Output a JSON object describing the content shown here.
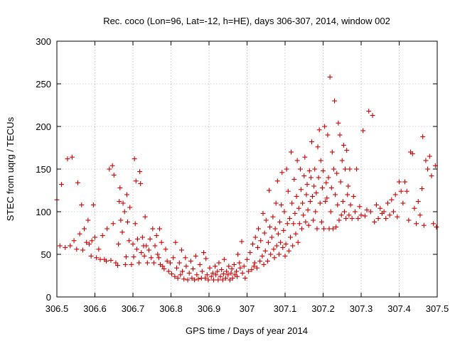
{
  "chart_data": {
    "type": "scatter",
    "title": "Rec. coco (Lon=96, Lat=-12, h=HE), days 306-307, 2014, window 002",
    "xlabel": "GPS time / Days of year 2014",
    "ylabel": "STEC from uqrg / TECUs",
    "xlim": [
      306.5,
      307.5
    ],
    "ylim": [
      0,
      300
    ],
    "grid": true,
    "marker": "plus",
    "point_color": "#d00000",
    "xticks": [
      {
        "value": 306.5,
        "label": "306.5"
      },
      {
        "value": 306.6,
        "label": "306.6"
      },
      {
        "value": 306.7,
        "label": "306.7"
      },
      {
        "value": 306.8,
        "label": "306.8"
      },
      {
        "value": 306.9,
        "label": "306.9"
      },
      {
        "value": 307.0,
        "label": "307"
      },
      {
        "value": 307.1,
        "label": "307.1"
      },
      {
        "value": 307.2,
        "label": "307.2"
      },
      {
        "value": 307.3,
        "label": "307.3"
      },
      {
        "value": 307.4,
        "label": "307.4"
      },
      {
        "value": 307.5,
        "label": "307.5"
      }
    ],
    "yticks": [
      {
        "value": 0,
        "label": "0"
      },
      {
        "value": 50,
        "label": "50"
      },
      {
        "value": 100,
        "label": "100"
      },
      {
        "value": 150,
        "label": "150"
      },
      {
        "value": 200,
        "label": "200"
      },
      {
        "value": 250,
        "label": "250"
      },
      {
        "value": 300,
        "label": "300"
      }
    ],
    "points": [
      [
        306.5,
        114
      ],
      [
        306.508,
        60
      ],
      [
        306.512,
        132
      ],
      [
        306.522,
        58
      ],
      [
        306.528,
        162
      ],
      [
        306.535,
        60
      ],
      [
        306.54,
        164
      ],
      [
        306.545,
        66
      ],
      [
        306.552,
        56
      ],
      [
        306.555,
        134
      ],
      [
        306.56,
        74
      ],
      [
        306.565,
        108
      ],
      [
        306.568,
        55
      ],
      [
        306.572,
        80
      ],
      [
        306.578,
        64
      ],
      [
        306.582,
        90
      ],
      [
        306.585,
        62
      ],
      [
        306.59,
        48
      ],
      [
        306.592,
        66
      ],
      [
        306.596,
        108
      ],
      [
        306.6,
        70
      ],
      [
        306.604,
        46
      ],
      [
        306.61,
        56
      ],
      [
        306.614,
        44
      ],
      [
        306.62,
        72
      ],
      [
        306.625,
        44
      ],
      [
        306.63,
        42
      ],
      [
        306.632,
        80
      ],
      [
        306.638,
        150
      ],
      [
        306.642,
        43
      ],
      [
        306.646,
        154
      ],
      [
        306.648,
        86
      ],
      [
        306.65,
        143
      ],
      [
        306.655,
        40
      ],
      [
        306.66,
        37
      ],
      [
        306.662,
        62
      ],
      [
        306.664,
        112
      ],
      [
        306.666,
        128
      ],
      [
        306.668,
        90
      ],
      [
        306.672,
        76
      ],
      [
        306.674,
        110
      ],
      [
        306.678,
        100
      ],
      [
        306.68,
        38
      ],
      [
        306.682,
        47
      ],
      [
        306.684,
        120
      ],
      [
        306.686,
        88
      ],
      [
        306.69,
        66
      ],
      [
        306.692,
        105
      ],
      [
        306.696,
        38
      ],
      [
        306.7,
        62
      ],
      [
        306.702,
        47
      ],
      [
        306.704,
        162
      ],
      [
        306.706,
        86
      ],
      [
        306.708,
        136
      ],
      [
        306.71,
        56
      ],
      [
        306.712,
        68
      ],
      [
        306.716,
        40
      ],
      [
        306.718,
        147
      ],
      [
        306.72,
        133
      ],
      [
        306.722,
        52
      ],
      [
        306.725,
        70
      ],
      [
        306.728,
        60
      ],
      [
        306.73,
        48
      ],
      [
        306.732,
        94
      ],
      [
        306.735,
        60
      ],
      [
        306.738,
        40
      ],
      [
        306.742,
        55
      ],
      [
        306.745,
        68
      ],
      [
        306.748,
        46
      ],
      [
        306.752,
        80
      ],
      [
        306.755,
        40
      ],
      [
        306.758,
        60
      ],
      [
        306.762,
        72
      ],
      [
        306.765,
        50
      ],
      [
        306.768,
        46
      ],
      [
        306.77,
        80
      ],
      [
        306.772,
        38
      ],
      [
        306.775,
        64
      ],
      [
        306.778,
        36
      ],
      [
        306.782,
        33
      ],
      [
        306.786,
        56
      ],
      [
        306.79,
        42
      ],
      [
        306.794,
        30
      ],
      [
        306.798,
        40
      ],
      [
        306.802,
        27
      ],
      [
        306.806,
        46
      ],
      [
        306.81,
        24
      ],
      [
        306.812,
        64
      ],
      [
        306.815,
        34
      ],
      [
        306.818,
        22
      ],
      [
        306.822,
        40
      ],
      [
        306.825,
        26
      ],
      [
        306.828,
        55
      ],
      [
        306.83,
        30
      ],
      [
        306.834,
        21
      ],
      [
        306.838,
        46
      ],
      [
        306.84,
        36
      ],
      [
        306.844,
        20
      ],
      [
        306.848,
        28
      ],
      [
        306.852,
        42
      ],
      [
        306.855,
        22
      ],
      [
        306.858,
        33
      ],
      [
        306.862,
        20
      ],
      [
        306.865,
        48
      ],
      [
        306.868,
        26
      ],
      [
        306.872,
        21
      ],
      [
        306.876,
        38
      ],
      [
        306.88,
        22
      ],
      [
        306.882,
        30
      ],
      [
        306.886,
        52
      ],
      [
        306.89,
        22
      ],
      [
        306.892,
        45
      ],
      [
        306.895,
        26
      ],
      [
        306.898,
        20
      ],
      [
        306.902,
        34
      ],
      [
        306.906,
        24
      ],
      [
        306.91,
        28
      ],
      [
        306.912,
        20
      ],
      [
        306.916,
        36
      ],
      [
        306.918,
        26
      ],
      [
        306.922,
        30
      ],
      [
        306.924,
        20
      ],
      [
        306.926,
        40
      ],
      [
        306.93,
        24
      ],
      [
        306.933,
        32
      ],
      [
        306.936,
        20
      ],
      [
        306.938,
        27
      ],
      [
        306.94,
        44
      ],
      [
        306.944,
        22
      ],
      [
        306.946,
        30
      ],
      [
        306.95,
        26
      ],
      [
        306.952,
        36
      ],
      [
        306.955,
        20
      ],
      [
        306.958,
        28
      ],
      [
        306.96,
        33
      ],
      [
        306.962,
        22
      ],
      [
        306.966,
        38
      ],
      [
        306.968,
        26
      ],
      [
        306.972,
        30
      ],
      [
        306.974,
        24
      ],
      [
        306.976,
        50
      ],
      [
        306.98,
        40
      ],
      [
        306.982,
        34
      ],
      [
        306.986,
        65
      ],
      [
        306.988,
        28
      ],
      [
        306.992,
        36
      ],
      [
        306.995,
        22
      ],
      [
        307.0,
        44
      ],
      [
        307.004,
        30
      ],
      [
        307.008,
        52
      ],
      [
        307.012,
        32
      ],
      [
        307.015,
        62
      ],
      [
        307.018,
        36
      ],
      [
        307.02,
        40
      ],
      [
        307.022,
        70
      ],
      [
        307.026,
        34
      ],
      [
        307.028,
        58
      ],
      [
        307.03,
        80
      ],
      [
        307.034,
        42
      ],
      [
        307.036,
        66
      ],
      [
        307.04,
        48
      ],
      [
        307.042,
        98
      ],
      [
        307.044,
        38
      ],
      [
        307.046,
        75
      ],
      [
        307.048,
        54
      ],
      [
        307.05,
        90
      ],
      [
        307.054,
        42
      ],
      [
        307.056,
        64
      ],
      [
        307.058,
        125
      ],
      [
        307.06,
        82
      ],
      [
        307.062,
        50
      ],
      [
        307.065,
        70
      ],
      [
        307.068,
        94
      ],
      [
        307.07,
        56
      ],
      [
        307.072,
        46
      ],
      [
        307.074,
        80
      ],
      [
        307.076,
        110
      ],
      [
        307.078,
        60
      ],
      [
        307.08,
        136
      ],
      [
        307.082,
        74
      ],
      [
        307.084,
        50
      ],
      [
        307.086,
        88
      ],
      [
        307.088,
        64
      ],
      [
        307.09,
        108
      ],
      [
        307.092,
        146
      ],
      [
        307.094,
        58
      ],
      [
        307.096,
        78
      ],
      [
        307.098,
        100
      ],
      [
        307.1,
        48
      ],
      [
        307.102,
        62
      ],
      [
        307.104,
        150
      ],
      [
        307.106,
        86
      ],
      [
        307.108,
        124
      ],
      [
        307.11,
        54
      ],
      [
        307.112,
        92
      ],
      [
        307.114,
        70
      ],
      [
        307.116,
        170
      ],
      [
        307.118,
        110
      ],
      [
        307.12,
        60
      ],
      [
        307.122,
        86
      ],
      [
        307.124,
        138
      ],
      [
        307.126,
        98
      ],
      [
        307.128,
        74
      ],
      [
        307.13,
        118
      ],
      [
        307.132,
        160
      ],
      [
        307.134,
        64
      ],
      [
        307.136,
        104
      ],
      [
        307.138,
        86
      ],
      [
        307.14,
        150
      ],
      [
        307.142,
        126
      ],
      [
        307.144,
        80
      ],
      [
        307.146,
        110
      ],
      [
        307.148,
        96
      ],
      [
        307.15,
        142
      ],
      [
        307.152,
        164
      ],
      [
        307.154,
        88
      ],
      [
        307.156,
        120
      ],
      [
        307.158,
        132
      ],
      [
        307.16,
        102
      ],
      [
        307.162,
        84
      ],
      [
        307.164,
        148
      ],
      [
        307.166,
        112
      ],
      [
        307.168,
        140
      ],
      [
        307.17,
        182
      ],
      [
        307.172,
        118
      ],
      [
        307.174,
        90
      ],
      [
        307.176,
        130
      ],
      [
        307.178,
        150
      ],
      [
        307.18,
        100
      ],
      [
        307.182,
        122
      ],
      [
        307.184,
        80
      ],
      [
        307.186,
        176
      ],
      [
        307.188,
        140
      ],
      [
        307.19,
        196
      ],
      [
        307.192,
        110
      ],
      [
        307.194,
        160
      ],
      [
        307.196,
        88
      ],
      [
        307.198,
        128
      ],
      [
        307.2,
        148
      ],
      [
        307.202,
        80
      ],
      [
        307.204,
        200
      ],
      [
        307.206,
        112
      ],
      [
        307.208,
        134
      ],
      [
        307.21,
        116
      ],
      [
        307.212,
        190
      ],
      [
        307.214,
        140
      ],
      [
        307.216,
        80
      ],
      [
        307.218,
        258
      ],
      [
        307.22,
        100
      ],
      [
        307.222,
        128
      ],
      [
        307.224,
        170
      ],
      [
        307.226,
        80
      ],
      [
        307.228,
        150
      ],
      [
        307.23,
        230
      ],
      [
        307.232,
        120
      ],
      [
        307.234,
        82
      ],
      [
        307.236,
        145
      ],
      [
        307.238,
        108
      ],
      [
        307.24,
        204
      ],
      [
        307.242,
        90
      ],
      [
        307.244,
        190
      ],
      [
        307.246,
        135
      ],
      [
        307.248,
        96
      ],
      [
        307.25,
        160
      ],
      [
        307.252,
        112
      ],
      [
        307.254,
        178
      ],
      [
        307.256,
        100
      ],
      [
        307.258,
        150
      ],
      [
        307.26,
        92
      ],
      [
        307.262,
        172
      ],
      [
        307.264,
        120
      ],
      [
        307.266,
        130
      ],
      [
        307.268,
        96
      ],
      [
        307.27,
        150
      ],
      [
        307.272,
        108
      ],
      [
        307.276,
        92
      ],
      [
        307.28,
        118
      ],
      [
        307.284,
        100
      ],
      [
        307.288,
        150
      ],
      [
        307.292,
        92
      ],
      [
        307.296,
        106
      ],
      [
        307.3,
        96
      ],
      [
        307.305,
        195
      ],
      [
        307.31,
        95
      ],
      [
        307.315,
        102
      ],
      [
        307.32,
        218
      ],
      [
        307.325,
        100
      ],
      [
        307.33,
        213
      ],
      [
        307.335,
        88
      ],
      [
        307.34,
        108
      ],
      [
        307.345,
        92
      ],
      [
        307.35,
        104
      ],
      [
        307.355,
        98
      ],
      [
        307.36,
        100
      ],
      [
        307.365,
        92
      ],
      [
        307.37,
        110
      ],
      [
        307.375,
        96
      ],
      [
        307.38,
        114
      ],
      [
        307.385,
        100
      ],
      [
        307.39,
        120
      ],
      [
        307.395,
        94
      ],
      [
        307.4,
        135
      ],
      [
        307.405,
        124
      ],
      [
        307.41,
        110
      ],
      [
        307.415,
        135
      ],
      [
        307.42,
        124
      ],
      [
        307.425,
        90
      ],
      [
        307.43,
        170
      ],
      [
        307.435,
        168
      ],
      [
        307.44,
        104
      ],
      [
        307.445,
        86
      ],
      [
        307.45,
        112
      ],
      [
        307.455,
        96
      ],
      [
        307.46,
        127
      ],
      [
        307.462,
        188
      ],
      [
        307.465,
        84
      ],
      [
        307.47,
        160
      ],
      [
        307.475,
        150
      ],
      [
        307.48,
        165
      ],
      [
        307.485,
        142
      ],
      [
        307.49,
        86
      ],
      [
        307.495,
        154
      ],
      [
        307.498,
        82
      ]
    ]
  }
}
